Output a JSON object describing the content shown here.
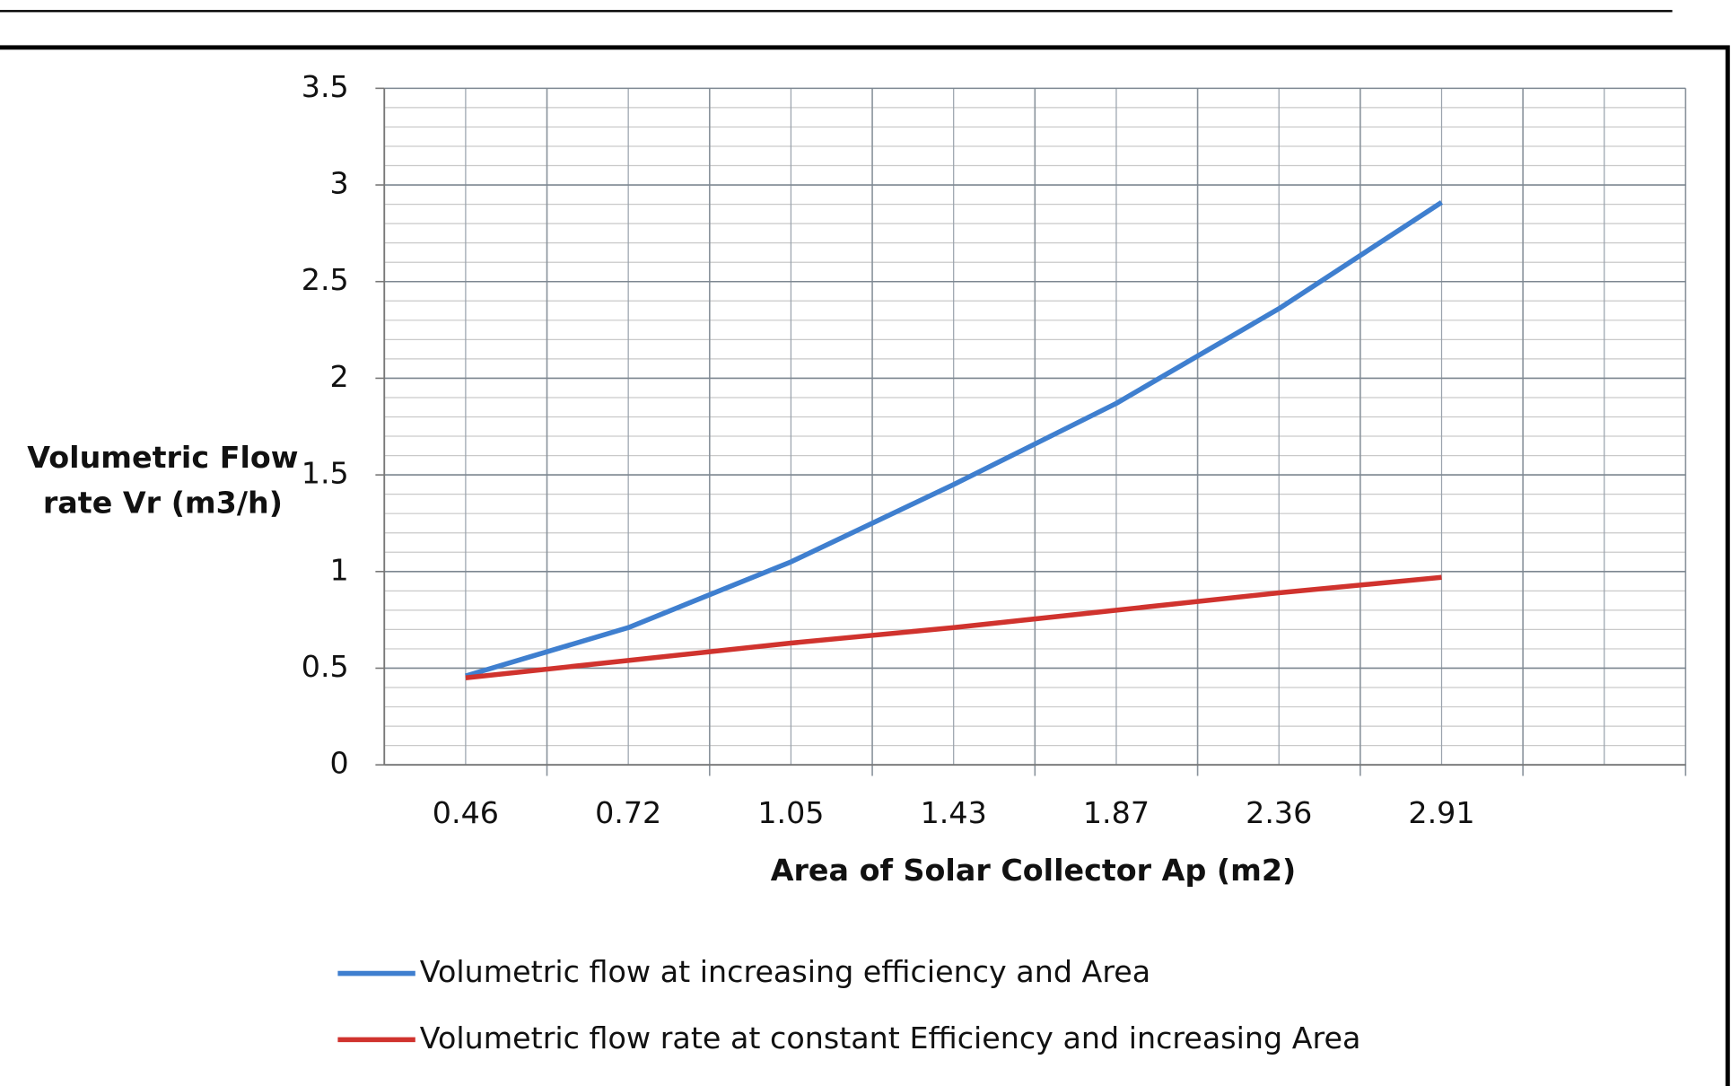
{
  "chart_data": {
    "type": "line",
    "x_label": "Area of Solar Collector Ap (m2)",
    "y_label": [
      "Volumetric Flow",
      "rate Vr (m3/h)"
    ],
    "categories": [
      "0.46",
      "0.72",
      "1.05",
      "1.43",
      "1.87",
      "2.36",
      "2.91",
      null
    ],
    "series": [
      {
        "name": "Volumetric flow at increasing efficiency and Area",
        "color": "#3f7fcf",
        "values": [
          0.46,
          0.71,
          1.05,
          1.45,
          1.87,
          2.36,
          2.91,
          null
        ]
      },
      {
        "name": "Volumetric flow rate at constant Efficiency and increasing Area",
        "color": "#d0332e",
        "values": [
          0.45,
          0.54,
          0.63,
          0.71,
          0.8,
          0.89,
          0.97,
          null
        ]
      }
    ],
    "ylim": [
      0,
      3.5
    ],
    "yticks": [
      0,
      0.5,
      1,
      1.5,
      2,
      2.5,
      3,
      3.5
    ],
    "grid": true,
    "legend_position": "bottom"
  }
}
